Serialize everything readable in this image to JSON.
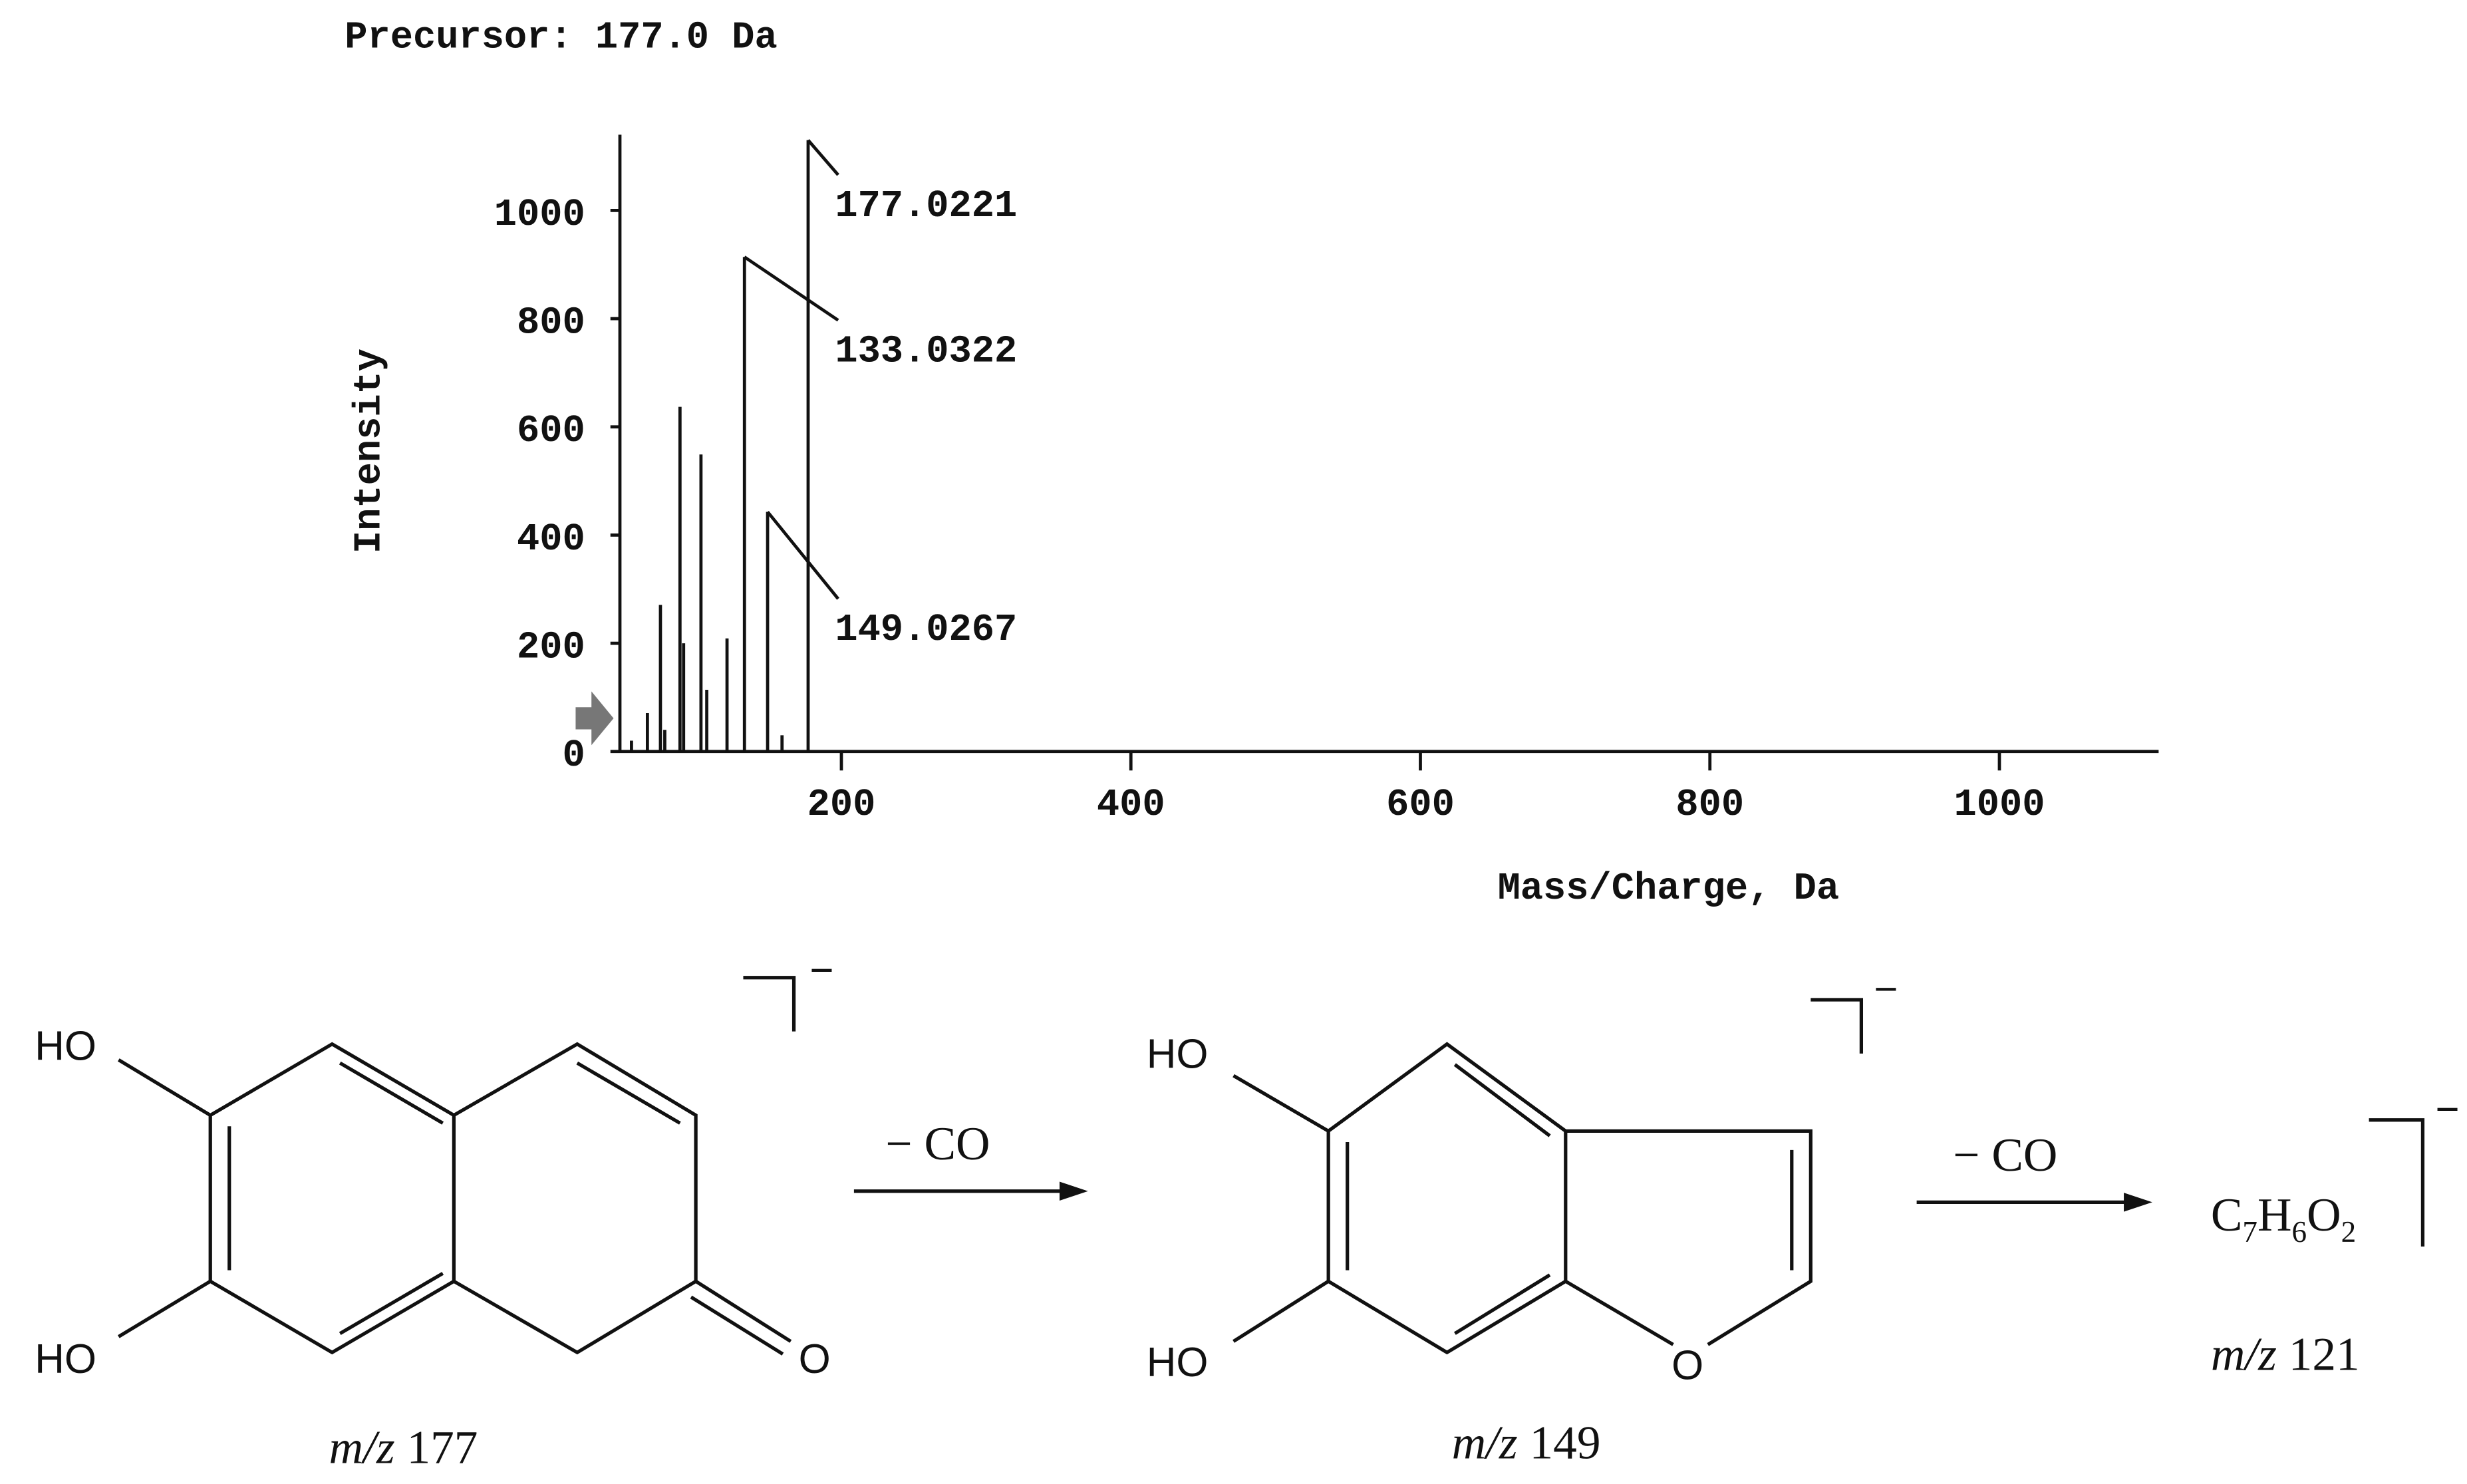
{
  "chart_data": {
    "type": "stick",
    "title": "Precursor: 177.0 Da",
    "x_label": "Mass/Charge, Da",
    "y_label": "Intensity",
    "x": [
      55,
      66,
      75,
      78,
      88.5,
      91,
      103,
      107,
      121,
      133.0322,
      149.0267,
      159,
      177.0221
    ],
    "values": [
      20,
      71,
      271,
      40,
      637,
      200,
      549,
      114,
      209,
      914,
      443,
      30,
      1130
    ],
    "peak_labels": [
      null,
      null,
      null,
      null,
      null,
      null,
      null,
      null,
      null,
      "133.0322",
      "149.0267",
      null,
      "177.0221"
    ],
    "color": "#111111",
    "xlim": [
      47,
      1110
    ],
    "ylim": [
      0,
      1140
    ],
    "xticks": [
      200,
      400,
      600,
      800,
      1000
    ],
    "yticks": [
      0,
      200,
      400,
      600,
      800,
      1000
    ]
  },
  "scheme": {
    "s1_ho_top": "HO",
    "s1_ho_bottom": "HO",
    "s1_oxygen": "O",
    "s1_charge": "−",
    "s1_caption_mz": "m/z",
    "s1_caption_value": "177",
    "step1": "− CO",
    "s2_ho_top": "HO",
    "s2_ho_bottom": "HO",
    "s2_oxygen": "O",
    "s2_charge": "−",
    "s2_caption_mz": "m/z",
    "s2_caption_value": "149",
    "step2": "− CO",
    "formula": [
      "C",
      "7",
      "H",
      "6",
      "O",
      "2"
    ],
    "s3_charge": "−",
    "s3_caption_mz": "m/z",
    "s3_caption_value": "121"
  }
}
